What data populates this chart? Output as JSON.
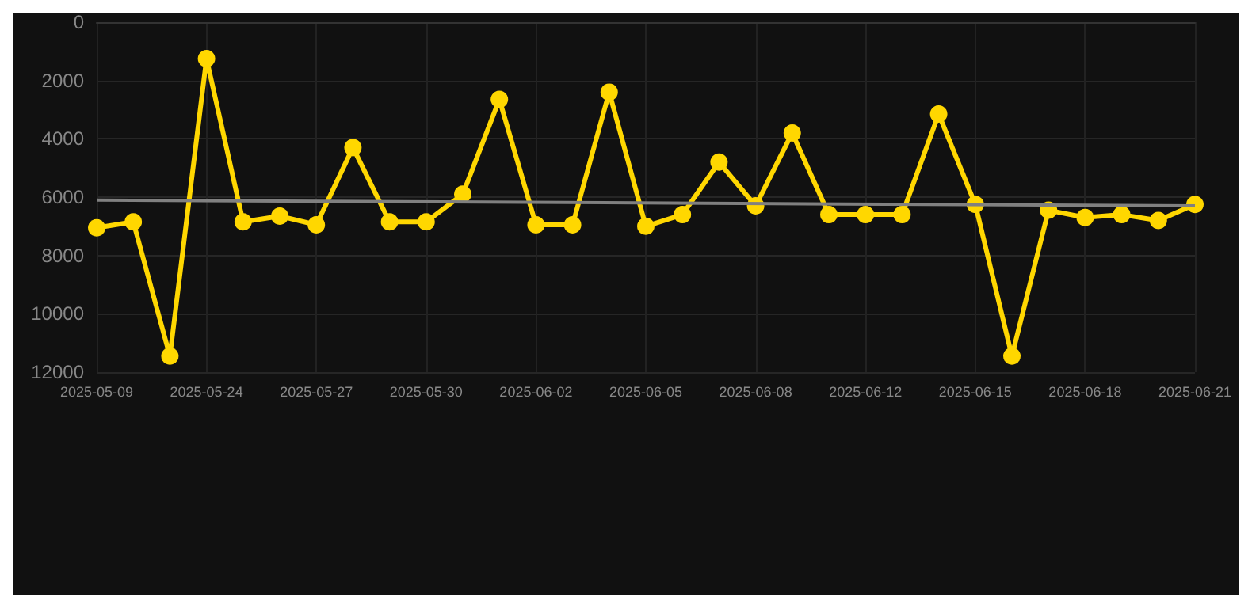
{
  "chart_data": {
    "type": "line",
    "categories": [
      "2025-05-09",
      null,
      null,
      "2025-05-24",
      null,
      null,
      "2025-05-27",
      null,
      null,
      "2025-05-30",
      null,
      null,
      "2025-06-02",
      null,
      null,
      "2025-06-05",
      null,
      null,
      "2025-06-08",
      null,
      null,
      "2025-06-12",
      null,
      null,
      "2025-06-15",
      null,
      null,
      "2025-06-18",
      null,
      null,
      "2025-06-21"
    ],
    "series": [
      {
        "color": "#ffd700",
        "values": [
          7050,
          6850,
          11450,
          1250,
          6850,
          6650,
          6950,
          4300,
          6850,
          6850,
          5900,
          2650,
          6950,
          6950,
          2400,
          7000,
          6600,
          4800,
          6300,
          3800,
          6600,
          6600,
          6600,
          3150,
          6250,
          11450,
          6450,
          6700,
          6600,
          6800,
          6250
        ]
      },
      {
        "type": "line",
        "marker": "none",
        "color": "#808080",
        "values": [
          6100,
          null,
          null,
          null,
          null,
          null,
          null,
          null,
          null,
          null,
          null,
          null,
          null,
          null,
          null,
          null,
          null,
          null,
          null,
          null,
          null,
          null,
          null,
          null,
          null,
          null,
          null,
          null,
          null,
          null,
          6300
        ]
      }
    ],
    "ylim": [
      12000,
      0
    ],
    "yticks": [
      0,
      2000,
      4000,
      6000,
      8000,
      10000,
      12000
    ],
    "grid": true,
    "marker": "circle"
  }
}
